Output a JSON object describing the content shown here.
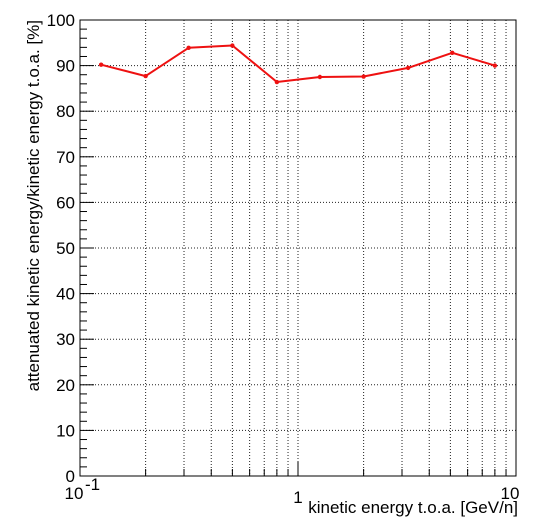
{
  "chart_data": {
    "type": "line",
    "xlabel": "kinetic energy t.o.a. [GeV/n]",
    "ylabel": "attenuated kinetic energy/kinetic energy t.o.a. [%]",
    "xscale": "log",
    "xlim": [
      0.1,
      10
    ],
    "ylim": [
      0,
      100
    ],
    "grid": true,
    "x_major_ticks": [
      {
        "value": 0.1,
        "base": "10",
        "exp": "-1"
      },
      {
        "value": 1,
        "base": "1",
        "exp": ""
      },
      {
        "value": 10,
        "base": "10",
        "exp": ""
      }
    ],
    "y_ticks": [
      "0",
      "10",
      "20",
      "30",
      "40",
      "50",
      "60",
      "70",
      "80",
      "90",
      "100"
    ],
    "series": [
      {
        "color": "#ee1111",
        "x": [
          0.125,
          0.2,
          0.315,
          0.5,
          0.8,
          1.26,
          2.0,
          3.2,
          5.1,
          8.0
        ],
        "y": [
          90.2,
          87.7,
          93.9,
          94.4,
          86.4,
          87.5,
          87.6,
          89.5,
          92.8,
          90.0
        ]
      }
    ]
  }
}
